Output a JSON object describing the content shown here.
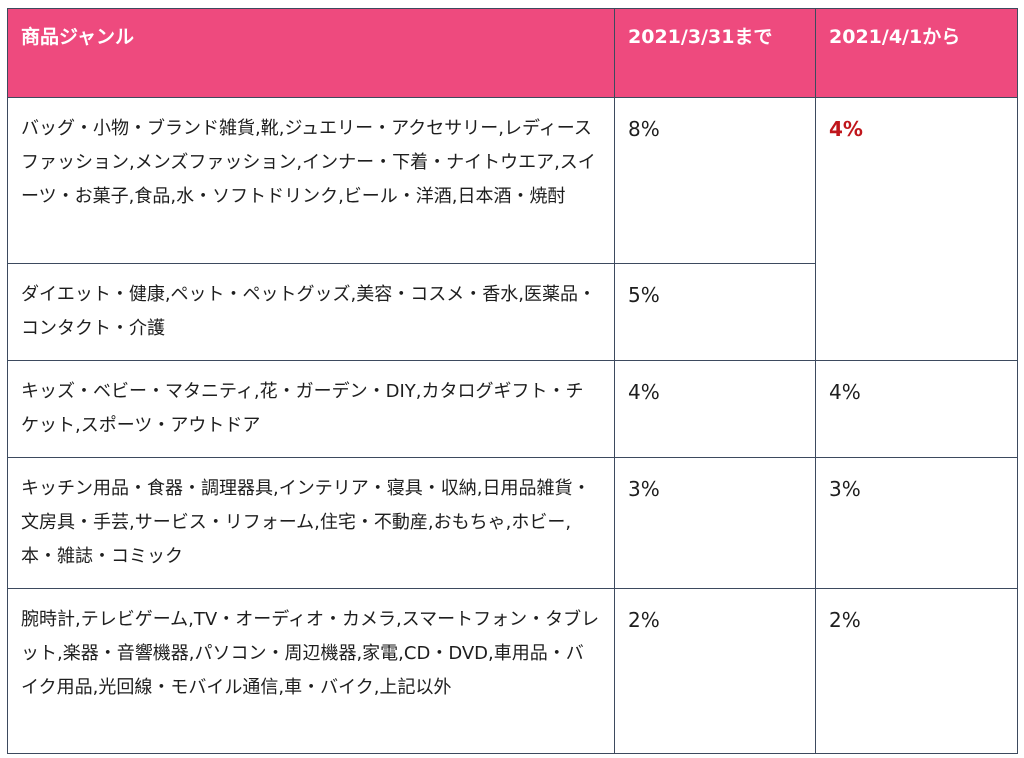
{
  "table": {
    "headers": {
      "genre": "商品ジャンル",
      "until": "2021/3/31まで",
      "from": "2021/4/1から"
    },
    "rows": [
      {
        "genre": "バッグ・小物・ブランド雑貨,靴,ジュエリー・アクセサリー,レディースファッション,メンズファッション,インナー・下着・ナイトウエア,スイーツ・お菓子,食品,水・ソフトドリンク,ビール・洋酒,日本酒・焼酎",
        "until": "8%"
      },
      {
        "genre": "ダイエット・健康,ペット・ペットグッズ,美容・コスメ・香水,医薬品・コンタクト・介護",
        "until": "5%"
      },
      {
        "genre": "キッズ・ベビー・マタニティ,花・ガーデン・DIY,カタログギフト・チケット,スポーツ・アウトドア",
        "until": "4%",
        "from": "4%"
      },
      {
        "genre": "キッチン用品・食器・調理器具,インテリア・寝具・収納,日用品雑貨・文房具・手芸,サービス・リフォーム,住宅・不動産,おもちゃ,ホビー,本・雑誌・コミック",
        "until": "3%",
        "from": "3%"
      },
      {
        "genre": "腕時計,テレビゲーム,TV・オーディオ・カメラ,スマートフォン・タブレット,楽器・音響機器,パソコン・周辺機器,家電,CD・DVD,車用品・バイク用品,光回線・モバイル通信,車・バイク,上記以外",
        "until": "2%",
        "from": "2%"
      }
    ],
    "merged_from_rows_1_2": "4%",
    "colors": {
      "header_bg": "#ee4a7e",
      "header_text": "#ffffff",
      "border": "#3d4a5e",
      "highlight_text": "#c0161c"
    }
  }
}
